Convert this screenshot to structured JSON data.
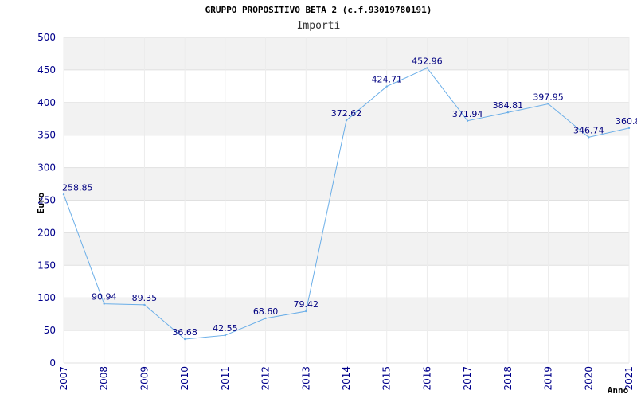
{
  "chart_data": {
    "type": "line",
    "title": "GRUPPO PROPOSITIVO BETA 2 (c.f.93019780191)",
    "subtitle": "Importi",
    "xlabel": "Anno",
    "ylabel": "Euro",
    "x": [
      "2007",
      "2008",
      "2009",
      "2010",
      "2011",
      "2012",
      "2013",
      "2014",
      "2015",
      "2016",
      "2017",
      "2018",
      "2019",
      "2020",
      "2021"
    ],
    "series": [
      {
        "values": [
          258.85,
          90.94,
          89.35,
          36.68,
          42.55,
          68.6,
          79.42,
          372.62,
          424.71,
          452.96,
          371.94,
          384.81,
          397.95,
          346.74,
          360.8
        ],
        "data_labels": [
          "258.85",
          "90.94",
          "89.35",
          "36.68",
          "42.55",
          "68.60",
          "79.42",
          "372.62",
          "424.71",
          "452.96",
          "371.94",
          "384.81",
          "397.95",
          "346.74",
          "360.8"
        ]
      }
    ],
    "ylim": [
      0,
      500
    ],
    "yticks": [
      "0",
      "50",
      "100",
      "150",
      "200",
      "250",
      "300",
      "350",
      "400",
      "450",
      "500"
    ],
    "grid": true,
    "line_color": "#6aaee8",
    "band_color": "#f2f2f2",
    "tick_color": "#00008b",
    "label_color": "#000080"
  }
}
